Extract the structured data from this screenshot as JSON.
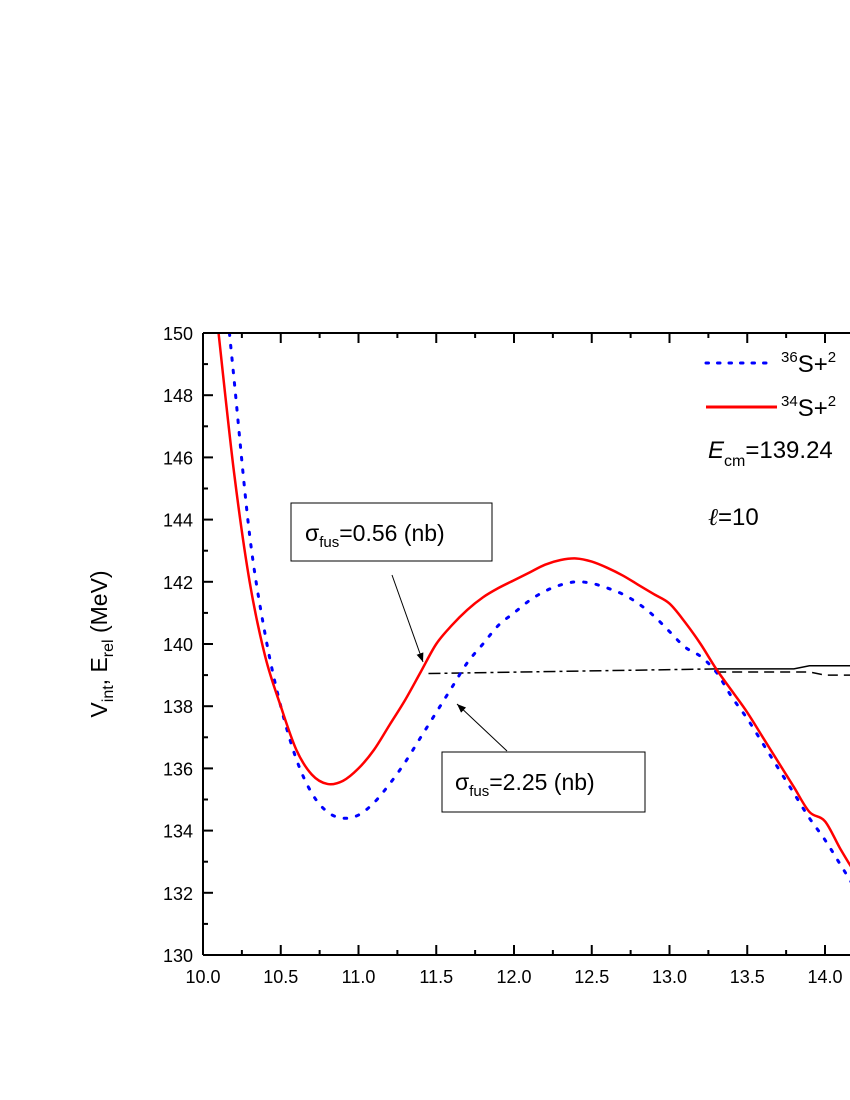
{
  "chart_data": {
    "type": "line",
    "xlabel": "",
    "ylabel": "V_int, E_rel (MeV)",
    "ylabel_parts": {
      "v": "V",
      "v_sub": "int",
      "sep": ", E",
      "e_sub": "rel",
      "unit": " (MeV)"
    },
    "xlim": [
      10.0,
      14.25
    ],
    "ylim": [
      130,
      150
    ],
    "x_ticks": [
      "10.0",
      "10.5",
      "11.0",
      "11.5",
      "12.0",
      "12.5",
      "13.0",
      "13.5",
      "14.0"
    ],
    "y_ticks": [
      "130",
      "132",
      "134",
      "136",
      "138",
      "140",
      "142",
      "144",
      "146",
      "148",
      "150"
    ],
    "grid": false,
    "legend_position": "top-right",
    "series": [
      {
        "name": "36S+2",
        "legend": {
          "sup": "36",
          "text": "S+",
          "sup2": "2"
        },
        "color": "#0000ff",
        "style": "dotted",
        "x": [
          10.17,
          10.2,
          10.3,
          10.4,
          10.5,
          10.6,
          10.7,
          10.8,
          10.9,
          11.0,
          11.1,
          11.2,
          11.3,
          11.4,
          11.5,
          11.6,
          11.7,
          11.8,
          11.9,
          12.0,
          12.1,
          12.2,
          12.3,
          12.4,
          12.5,
          12.6,
          12.7,
          12.8,
          12.9,
          13.0,
          13.1,
          13.2,
          13.3,
          13.4,
          13.5,
          13.6,
          13.7,
          13.8,
          13.9,
          14.0,
          14.1,
          14.2,
          14.25
        ],
        "y": [
          150,
          148.5,
          143.5,
          140.3,
          138.0,
          136.3,
          135.2,
          134.6,
          134.4,
          134.5,
          134.9,
          135.5,
          136.2,
          137.0,
          137.8,
          138.6,
          139.4,
          140.0,
          140.6,
          141.0,
          141.4,
          141.7,
          141.9,
          142.0,
          141.95,
          141.8,
          141.6,
          141.3,
          140.9,
          140.4,
          139.9,
          139.6,
          139.1,
          138.3,
          137.6,
          136.8,
          136.0,
          135.2,
          134.4,
          133.7,
          132.9,
          132.1,
          131.8
        ]
      },
      {
        "name": "34S+2",
        "legend": {
          "sup": "34",
          "text": "S+",
          "sup2": "2"
        },
        "color": "#ff0000",
        "style": "solid",
        "x": [
          10.1,
          10.2,
          10.3,
          10.4,
          10.5,
          10.6,
          10.7,
          10.8,
          10.9,
          11.0,
          11.1,
          11.2,
          11.3,
          11.4,
          11.5,
          11.6,
          11.7,
          11.8,
          11.9,
          12.0,
          12.1,
          12.2,
          12.3,
          12.4,
          12.5,
          12.6,
          12.7,
          12.8,
          12.9,
          13.0,
          13.1,
          13.2,
          13.3,
          13.4,
          13.5,
          13.6,
          13.7,
          13.8,
          13.9,
          14.0,
          14.1,
          14.2,
          14.25
        ],
        "y": [
          150,
          145.5,
          142,
          139.6,
          138.0,
          136.6,
          135.8,
          135.5,
          135.6,
          136.0,
          136.6,
          137.4,
          138.2,
          139.1,
          140.0,
          140.6,
          141.1,
          141.5,
          141.8,
          142.05,
          142.3,
          142.55,
          142.7,
          142.75,
          142.65,
          142.45,
          142.2,
          141.9,
          141.6,
          141.3,
          140.7,
          140.0,
          139.2,
          138.5,
          137.8,
          137.0,
          136.2,
          135.4,
          134.6,
          134.3,
          133.4,
          132.6,
          132.4
        ]
      }
    ],
    "energy_lines": [
      {
        "style": "dash-dot",
        "x": [
          11.45,
          13.3
        ],
        "y": [
          139.05,
          139.2
        ]
      },
      {
        "style": "solid",
        "x": [
          13.3,
          13.8,
          13.9,
          14.25
        ],
        "y": [
          139.2,
          139.2,
          139.3,
          139.3
        ]
      },
      {
        "style": "dashed",
        "x": [
          13.3,
          13.9,
          14.0,
          14.25
        ],
        "y": [
          139.1,
          139.1,
          139.0,
          139.0
        ]
      }
    ],
    "annotations": [
      {
        "sigma": "σ",
        "sub": "fus",
        "text": "=0.56 (nb)",
        "points_to": [
          11.45,
          139.1
        ]
      },
      {
        "sigma": "σ",
        "sub": "fus",
        "text": "=2.25 (nb)",
        "points_to": [
          11.65,
          139.05
        ]
      }
    ],
    "ecm_label": {
      "e": "E",
      "sub": "cm",
      "text": "=139.24"
    },
    "l_label": {
      "l": "ℓ",
      "text": "=10"
    }
  }
}
